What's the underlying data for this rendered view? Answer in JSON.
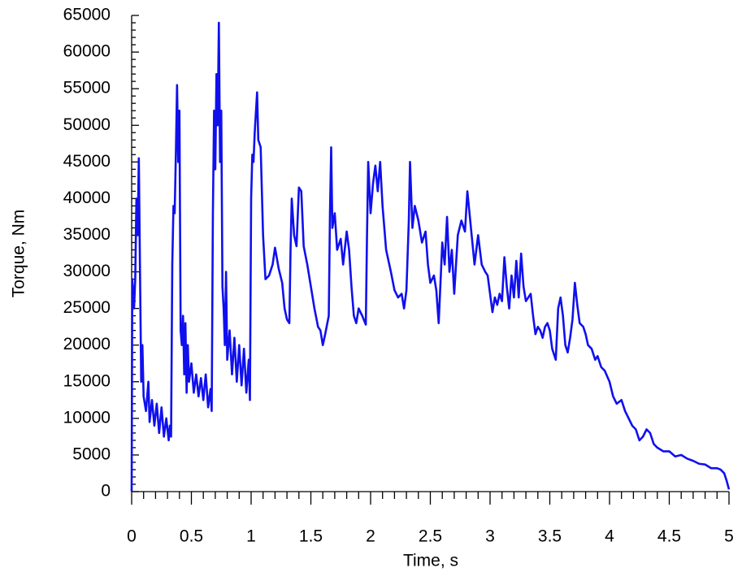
{
  "chart_data": {
    "type": "line",
    "xlabel": "Time, s",
    "ylabel": "Torque, Nm",
    "x": [
      0,
      0.005,
      0.02,
      0.03,
      0.04,
      0.05,
      0.06,
      0.07,
      0.08,
      0.09,
      0.1,
      0.12,
      0.14,
      0.15,
      0.17,
      0.19,
      0.21,
      0.23,
      0.25,
      0.27,
      0.29,
      0.31,
      0.32,
      0.33,
      0.34,
      0.35,
      0.36,
      0.37,
      0.38,
      0.39,
      0.4,
      0.41,
      0.42,
      0.43,
      0.44,
      0.45,
      0.46,
      0.47,
      0.48,
      0.5,
      0.52,
      0.54,
      0.56,
      0.58,
      0.6,
      0.62,
      0.64,
      0.66,
      0.67,
      0.68,
      0.69,
      0.7,
      0.71,
      0.72,
      0.73,
      0.74,
      0.75,
      0.76,
      0.77,
      0.78,
      0.79,
      0.8,
      0.82,
      0.84,
      0.86,
      0.88,
      0.9,
      0.92,
      0.94,
      0.96,
      0.98,
      0.99,
      1.0,
      1.01,
      1.02,
      1.03,
      1.05,
      1.06,
      1.08,
      1.1,
      1.12,
      1.15,
      1.18,
      1.2,
      1.23,
      1.26,
      1.28,
      1.3,
      1.32,
      1.33,
      1.34,
      1.36,
      1.38,
      1.4,
      1.42,
      1.44,
      1.47,
      1.5,
      1.53,
      1.56,
      1.58,
      1.6,
      1.62,
      1.65,
      1.66,
      1.67,
      1.68,
      1.7,
      1.72,
      1.75,
      1.77,
      1.8,
      1.82,
      1.84,
      1.86,
      1.88,
      1.9,
      1.93,
      1.96,
      1.97,
      1.98,
      2.0,
      2.02,
      2.04,
      2.06,
      2.08,
      2.1,
      2.13,
      2.17,
      2.2,
      2.23,
      2.26,
      2.28,
      2.3,
      2.32,
      2.33,
      2.35,
      2.37,
      2.4,
      2.43,
      2.46,
      2.48,
      2.5,
      2.53,
      2.55,
      2.57,
      2.6,
      2.62,
      2.64,
      2.66,
      2.68,
      2.7,
      2.73,
      2.76,
      2.79,
      2.81,
      2.84,
      2.87,
      2.9,
      2.93,
      2.96,
      2.98,
      3.0,
      3.02,
      3.04,
      3.06,
      3.08,
      3.1,
      3.12,
      3.14,
      3.16,
      3.18,
      3.2,
      3.22,
      3.24,
      3.26,
      3.28,
      3.3,
      3.32,
      3.34,
      3.36,
      3.38,
      3.4,
      3.42,
      3.44,
      3.46,
      3.48,
      3.5,
      3.52,
      3.55,
      3.57,
      3.59,
      3.61,
      3.63,
      3.65,
      3.67,
      3.69,
      3.71,
      3.73,
      3.75,
      3.78,
      3.8,
      3.82,
      3.85,
      3.88,
      3.9,
      3.93,
      3.96,
      4.0,
      4.03,
      4.06,
      4.1,
      4.13,
      4.16,
      4.19,
      4.22,
      4.25,
      4.28,
      4.31,
      4.34,
      4.37,
      4.4,
      4.45,
      4.5,
      4.55,
      4.6,
      4.65,
      4.7,
      4.75,
      4.8,
      4.85,
      4.9,
      4.93,
      4.96,
      4.98,
      5.0
    ],
    "series": [
      {
        "color": "#1010ee",
        "values": [
          0,
          29000,
          25000,
          29000,
          40000,
          35000,
          45500,
          30000,
          15000,
          20000,
          13000,
          11000,
          15000,
          9500,
          12500,
          9000,
          12000,
          8000,
          11500,
          7500,
          10000,
          7000,
          9000,
          7500,
          31000,
          39000,
          38000,
          46000,
          55500,
          45000,
          52000,
          22000,
          20000,
          24000,
          16000,
          23000,
          13500,
          20000,
          15000,
          17500,
          13500,
          16000,
          13000,
          15500,
          12500,
          16000,
          11500,
          14000,
          11000,
          38000,
          52000,
          44000,
          57000,
          50000,
          64000,
          45000,
          52000,
          28000,
          25000,
          20000,
          30000,
          18000,
          22000,
          16000,
          21000,
          15000,
          20000,
          14500,
          19500,
          13500,
          18000,
          12500,
          40000,
          46000,
          45000,
          49000,
          54500,
          48000,
          47000,
          35000,
          29000,
          29500,
          31000,
          33300,
          30500,
          28500,
          25000,
          23500,
          23000,
          33000,
          40000,
          35000,
          33500,
          41500,
          41000,
          33500,
          31000,
          28000,
          25000,
          22500,
          22000,
          20000,
          21500,
          24000,
          38000,
          47000,
          36000,
          38000,
          33000,
          34500,
          31000,
          35500,
          33000,
          28000,
          24000,
          23000,
          25000,
          24000,
          22800,
          35000,
          45000,
          38000,
          42000,
          44500,
          41000,
          45000,
          39000,
          33000,
          30000,
          27500,
          26500,
          27000,
          25000,
          27500,
          37000,
          45000,
          36000,
          39000,
          37000,
          34000,
          35500,
          31000,
          28500,
          29500,
          27500,
          23000,
          34000,
          31000,
          37500,
          30000,
          33000,
          27000,
          35000,
          37000,
          35500,
          41000,
          36000,
          31000,
          35000,
          31000,
          30000,
          29500,
          27000,
          24500,
          26500,
          25500,
          27000,
          26000,
          32000,
          28000,
          25000,
          29500,
          26500,
          31500,
          26500,
          32500,
          28000,
          26000,
          26500,
          27000,
          24000,
          21500,
          22500,
          22000,
          21000,
          22500,
          23000,
          22000,
          19500,
          18000,
          25000,
          26500,
          24000,
          20000,
          19000,
          21000,
          23500,
          28500,
          25500,
          23000,
          22500,
          21500,
          20000,
          19500,
          18000,
          18500,
          17000,
          16500,
          15000,
          13000,
          12000,
          12500,
          11000,
          10000,
          9000,
          8500,
          7000,
          7500,
          8500,
          8000,
          6500,
          6000,
          5500,
          5500,
          4800,
          5000,
          4500,
          4200,
          3800,
          3700,
          3200,
          3200,
          3000,
          2500,
          1500,
          300
        ]
      }
    ],
    "xlim": [
      0,
      5
    ],
    "xticks": [
      0,
      0.5,
      1,
      1.5,
      2,
      2.5,
      3,
      3.5,
      4,
      4.5,
      5
    ],
    "ylim": [
      0,
      65000
    ],
    "yticks": [
      0,
      5000,
      10000,
      15000,
      20000,
      25000,
      30000,
      35000,
      40000,
      45000,
      50000,
      55000,
      60000,
      65000
    ]
  }
}
